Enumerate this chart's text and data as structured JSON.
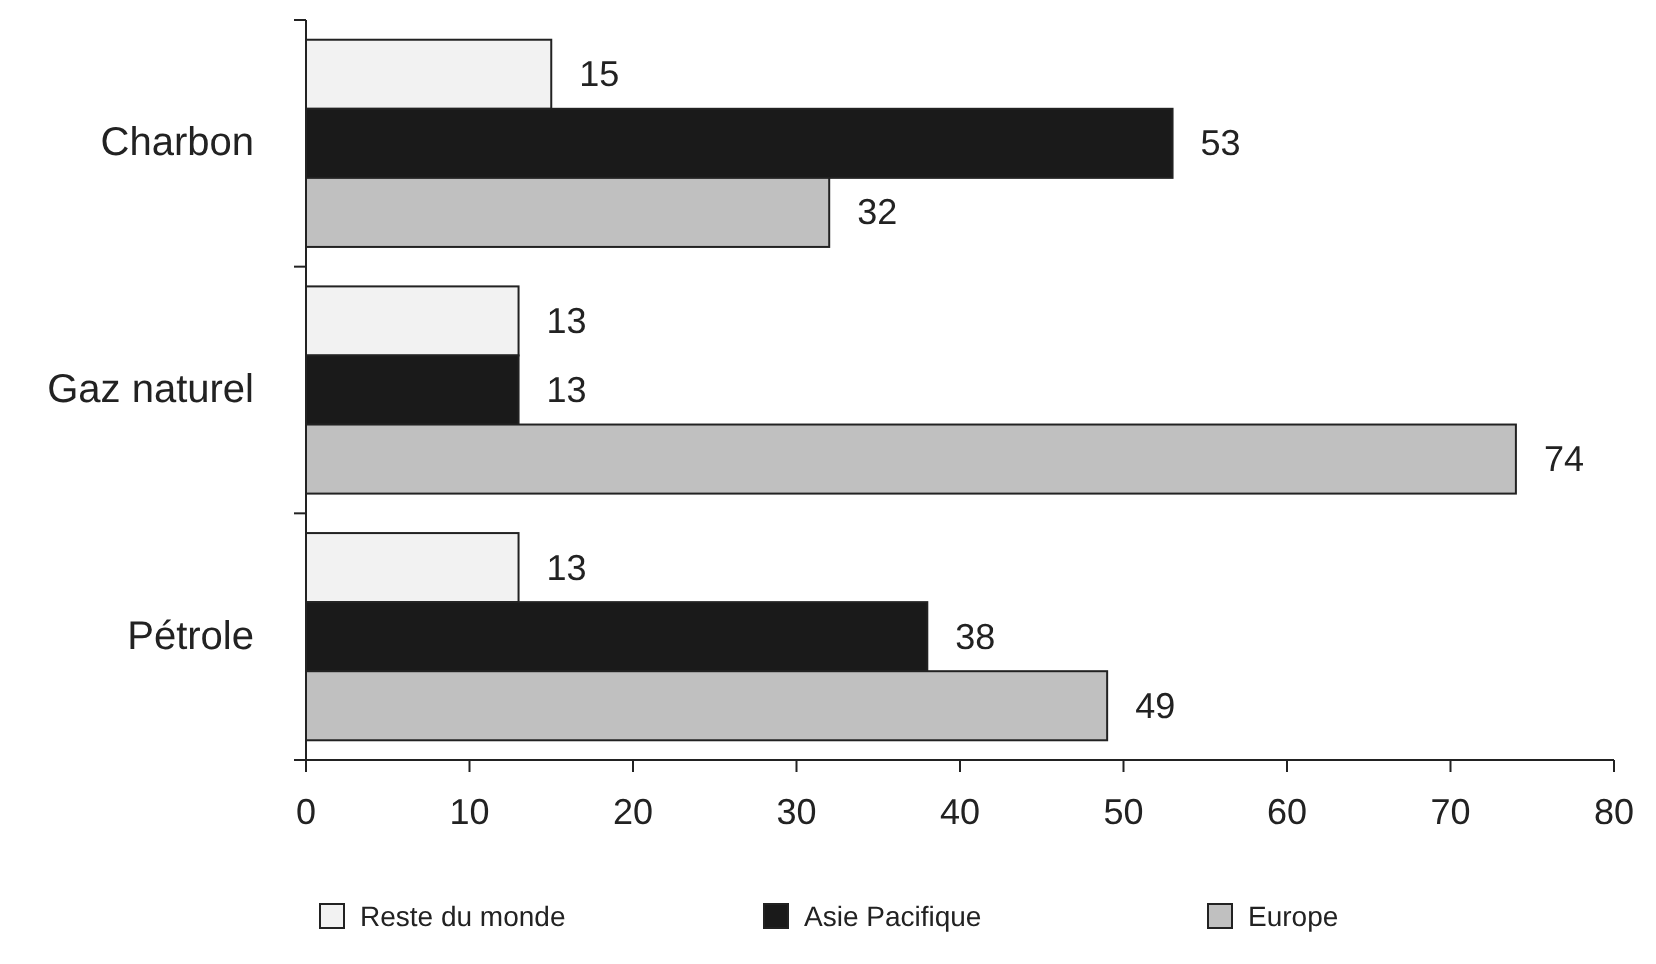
{
  "chart_data": {
    "type": "bar",
    "orientation": "horizontal",
    "categories": [
      "Charbon",
      "Gaz naturel",
      "Pétrole"
    ],
    "series": [
      {
        "name": "Reste du monde",
        "color": "#f2f2f2",
        "values": [
          15,
          13,
          13
        ]
      },
      {
        "name": "Asie Pacifique",
        "color": "#1a1a1a",
        "values": [
          53,
          13,
          38
        ]
      },
      {
        "name": "Europe",
        "color": "#c0c0c0",
        "values": [
          32,
          74,
          49
        ]
      }
    ],
    "xlim": [
      0,
      80
    ],
    "xticks": [
      0,
      10,
      20,
      30,
      40,
      50,
      60,
      70,
      80
    ],
    "data_labels": true,
    "legend": "bottom",
    "grid": false
  }
}
